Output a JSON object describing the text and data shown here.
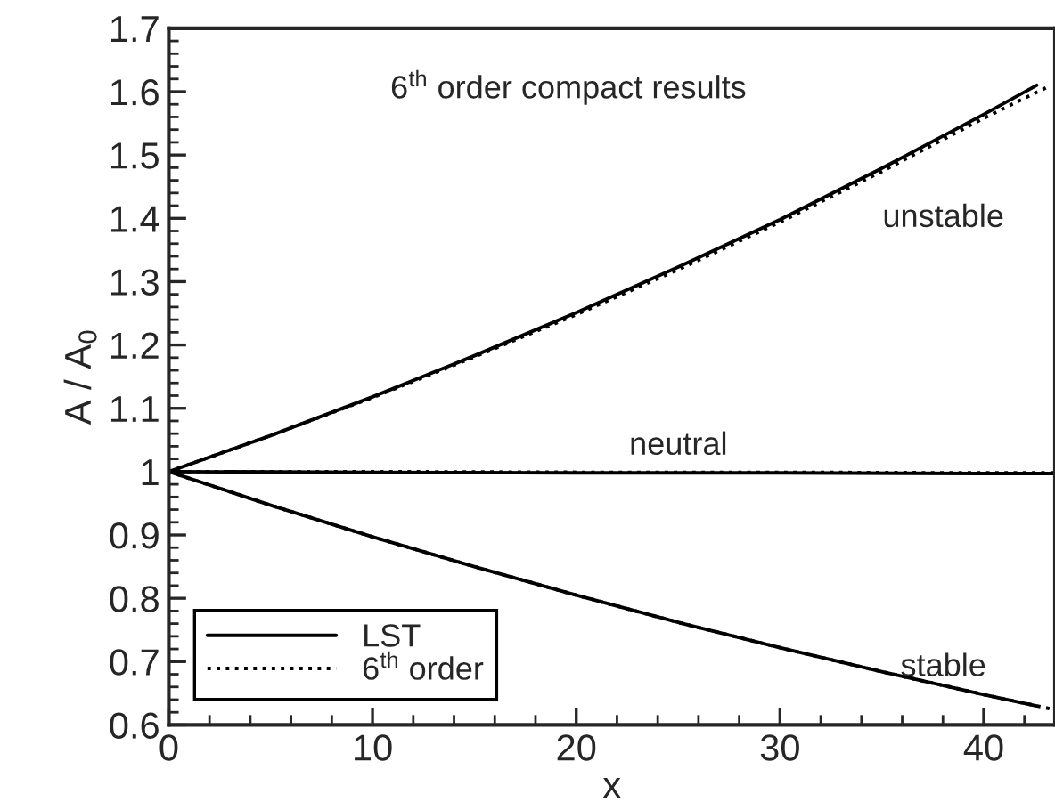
{
  "chart_data": {
    "type": "line",
    "xlabel": "x",
    "ylabel": "A / A$_{0}$",
    "xlim": [
      0,
      43.5
    ],
    "ylim": [
      0.6,
      1.7
    ],
    "xticks": [
      0,
      {
        "value": 2,
        "label": null
      },
      {
        "value": 4,
        "label": null
      },
      {
        "value": 6,
        "label": null
      },
      {
        "value": 8,
        "label": null
      },
      10,
      {
        "value": 12,
        "label": null
      },
      {
        "value": 14,
        "label": null
      },
      {
        "value": 16,
        "label": null
      },
      {
        "value": 18,
        "label": null
      },
      20,
      {
        "value": 22,
        "label": null
      },
      {
        "value": 24,
        "label": null
      },
      {
        "value": 26,
        "label": null
      },
      {
        "value": 28,
        "label": null
      },
      30,
      {
        "value": 32,
        "label": null
      },
      {
        "value": 34,
        "label": null
      },
      {
        "value": 36,
        "label": null
      },
      {
        "value": 38,
        "label": null
      },
      40,
      {
        "value": 42,
        "label": null
      }
    ],
    "yticks": [
      0.6,
      0.7,
      0.8,
      0.9,
      {
        "value": 1,
        "label": "1"
      },
      1.1,
      1.2,
      1.3,
      1.4,
      1.5,
      1.6,
      1.7
    ],
    "grid": false,
    "legend": "bottom left",
    "marker": "none",
    "annotations": [
      "6$^{th}$ order compact results",
      "unstable",
      "neutral",
      "stable"
    ],
    "series": [
      {
        "name": "LST",
        "color": "#000000",
        "line_style": "solid",
        "x": [
          0,
          5,
          10,
          15,
          20,
          25,
          30,
          35,
          40,
          42.6
        ],
        "values": [
          1,
          1.057,
          1.118,
          1.183,
          1.251,
          1.323,
          1.398,
          1.479,
          1.564,
          1.61
        ]
      },
      {
        "color": "#000000",
        "line_style": "solid",
        "x": [
          0,
          10,
          20,
          30,
          40,
          43.5
        ],
        "values": [
          1,
          0.999,
          0.998,
          0.998,
          0.997,
          0.997
        ]
      },
      {
        "color": "#000000",
        "line_style": "solid",
        "x": [
          0,
          5,
          10,
          15,
          20,
          25,
          30,
          35,
          40,
          42.6
        ],
        "values": [
          1,
          0.947,
          0.897,
          0.85,
          0.805,
          0.762,
          0.722,
          0.684,
          0.648,
          0.63
        ]
      },
      {
        "name": "6$^{th}$ order",
        "color": "#000000",
        "line_style": "dotted",
        "x": [
          0,
          5,
          10,
          15,
          20,
          25,
          30,
          35,
          40,
          43.3
        ],
        "values": [
          1,
          1.057,
          1.117,
          1.181,
          1.248,
          1.319,
          1.394,
          1.474,
          1.558,
          1.61
        ]
      },
      {
        "color": "#000000",
        "line_style": "dotted",
        "x": [
          0,
          10,
          20,
          30,
          40,
          43.5
        ],
        "values": [
          1,
          1,
          0.999,
          0.999,
          0.998,
          0.998
        ]
      },
      {
        "color": "#000000",
        "line_style": "dotted",
        "x": [
          0,
          5,
          10,
          15,
          20,
          25,
          30,
          35,
          40,
          43.5
        ],
        "values": [
          1,
          0.947,
          0.897,
          0.85,
          0.805,
          0.762,
          0.722,
          0.684,
          0.648,
          0.624
        ]
      }
    ]
  }
}
